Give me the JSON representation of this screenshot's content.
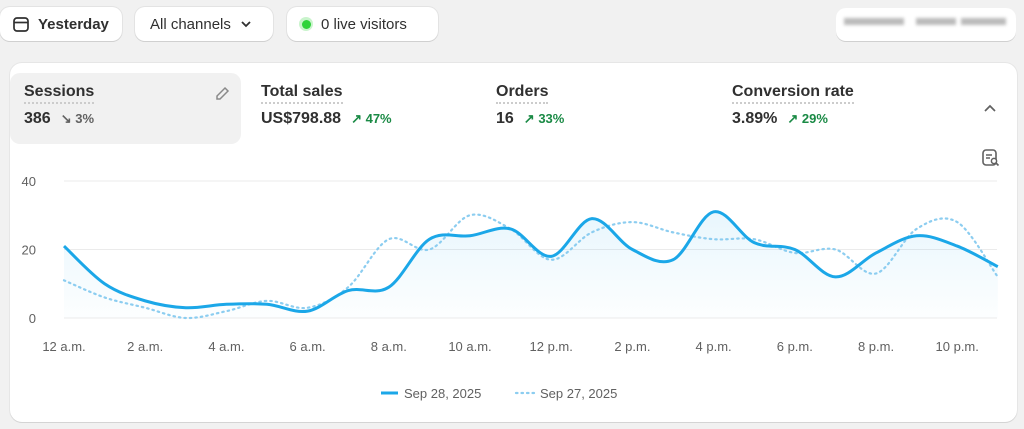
{
  "toolbar": {
    "date_label": "Yesterday",
    "channel_label": "All channels",
    "live_label": "0 live visitors",
    "live_dot_color": "#2fd33a"
  },
  "metrics": [
    {
      "title": "Sessions",
      "value": "386",
      "change": "3%",
      "direction": "down"
    },
    {
      "title": "Total sales",
      "value": "US$798.88",
      "change": "47%",
      "direction": "up"
    },
    {
      "title": "Orders",
      "value": "16",
      "change": "33%",
      "direction": "up"
    },
    {
      "title": "Conversion rate",
      "value": "3.89%",
      "change": "29%",
      "direction": "up"
    }
  ],
  "chart_data": {
    "type": "line",
    "x": [
      "12 a.m.",
      "1 a.m.",
      "2 a.m.",
      "3 a.m.",
      "4 a.m.",
      "5 a.m.",
      "6 a.m.",
      "7 a.m.",
      "8 a.m.",
      "9 a.m.",
      "10 a.m.",
      "11 a.m.",
      "12 p.m.",
      "1 p.m.",
      "2 p.m.",
      "3 p.m.",
      "4 p.m.",
      "5 p.m.",
      "6 p.m.",
      "7 p.m.",
      "8 p.m.",
      "9 p.m.",
      "10 p.m.",
      "11 p.m."
    ],
    "x_tick_labels": [
      "12 a.m.",
      "2 a.m.",
      "4 a.m.",
      "6 a.m.",
      "8 a.m.",
      "10 a.m.",
      "12 p.m.",
      "2 p.m.",
      "4 p.m.",
      "6 p.m.",
      "8 p.m.",
      "10 p.m."
    ],
    "y_ticks": [
      0,
      20,
      40
    ],
    "ylim": [
      0,
      40
    ],
    "grid": true,
    "legend": "bottom",
    "series": [
      {
        "name": "Sep 28, 2025",
        "style": "solid",
        "color": "#1ba7e8",
        "values": [
          21,
          10,
          5,
          3,
          4,
          4,
          2,
          8,
          9,
          23,
          24,
          26,
          18,
          29,
          20,
          17,
          31,
          22,
          20,
          12,
          19,
          24,
          21,
          15
        ]
      },
      {
        "name": "Sep 27, 2025",
        "style": "dotted",
        "color": "#8ccdf0",
        "values": [
          11,
          6,
          3,
          0,
          2,
          5,
          3,
          9,
          23,
          20,
          30,
          26,
          17,
          25,
          28,
          25,
          23,
          23,
          19,
          20,
          13,
          26,
          28,
          12
        ]
      }
    ]
  }
}
